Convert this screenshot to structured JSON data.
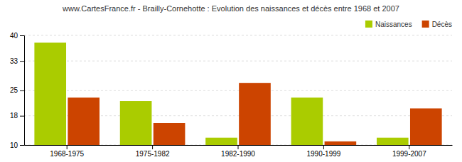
{
  "chart_data": {
    "type": "bar",
    "title": "www.CartesFrance.fr - Brailly-Cornehotte : Evolution des naissances et décès entre 1968 et 2007",
    "categories": [
      "1968-1975",
      "1975-1982",
      "1982-1990",
      "1990-1999",
      "1999-2007"
    ],
    "series": [
      {
        "name": "Naissances",
        "color": "#AACC00",
        "values": [
          38,
          22,
          12,
          23,
          12
        ]
      },
      {
        "name": "Décès",
        "color": "#CC4400",
        "values": [
          23,
          16,
          27,
          11,
          20
        ]
      }
    ],
    "ylim": [
      10,
      40
    ],
    "yticks": [
      10,
      18,
      25,
      33,
      40
    ],
    "grid": true,
    "legend": "upper right"
  }
}
